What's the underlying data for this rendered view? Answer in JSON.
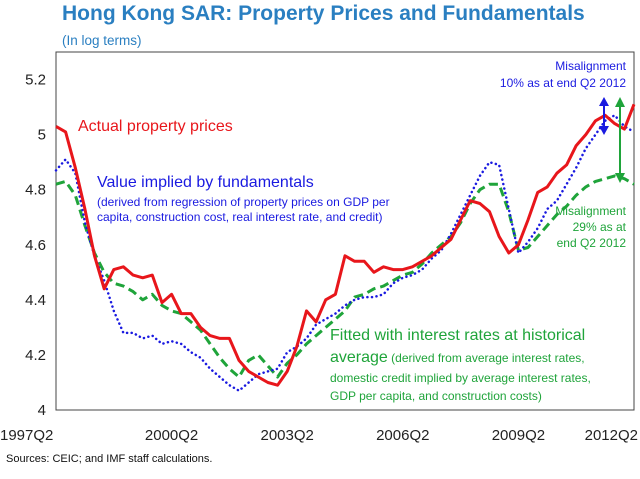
{
  "chart_data": {
    "type": "line",
    "title": "Hong Kong SAR: Property Prices and Fundamentals",
    "subtitle": "(In log terms)",
    "ylim": [
      4.0,
      5.3
    ],
    "yticks": [
      "4",
      "4.2",
      "4.4",
      "4.6",
      "4.8",
      "5",
      "5.2"
    ],
    "ytick_values": [
      4.0,
      4.2,
      4.4,
      4.6,
      4.8,
      5.0,
      5.2
    ],
    "xticks": [
      "1997Q2",
      "2000Q2",
      "2003Q2",
      "2006Q2",
      "2009Q2",
      "2012Q2"
    ],
    "xtick_index": [
      0,
      12,
      24,
      36,
      48,
      60
    ],
    "n_points": 61,
    "series": [
      {
        "name": "Actual property prices",
        "color": "#e8161b",
        "style": "solid",
        "values": [
          5.03,
          5.01,
          4.88,
          4.73,
          4.56,
          4.44,
          4.51,
          4.52,
          4.49,
          4.48,
          4.49,
          4.39,
          4.42,
          4.35,
          4.35,
          4.3,
          4.27,
          4.26,
          4.26,
          4.18,
          4.14,
          4.12,
          4.1,
          4.09,
          4.14,
          4.23,
          4.36,
          4.32,
          4.4,
          4.42,
          4.56,
          4.54,
          4.54,
          4.5,
          4.52,
          4.51,
          4.51,
          4.52,
          4.54,
          4.56,
          4.59,
          4.62,
          4.69,
          4.76,
          4.75,
          4.72,
          4.63,
          4.57,
          4.6,
          4.69,
          4.79,
          4.81,
          4.86,
          4.89,
          4.96,
          5.0,
          5.05,
          5.07,
          5.04,
          5.02,
          5.11
        ]
      },
      {
        "name": "Value implied by fundamentals",
        "color": "#1a1ae0",
        "style": "dotted",
        "values": [
          4.87,
          4.91,
          4.86,
          4.68,
          4.56,
          4.47,
          4.36,
          4.28,
          4.28,
          4.26,
          4.27,
          4.24,
          4.25,
          4.24,
          4.21,
          4.19,
          4.15,
          4.12,
          4.09,
          4.07,
          4.1,
          4.13,
          4.14,
          4.15,
          4.21,
          4.23,
          4.26,
          4.31,
          4.33,
          4.35,
          4.38,
          4.4,
          4.41,
          4.41,
          4.42,
          4.46,
          4.48,
          4.49,
          4.51,
          4.55,
          4.58,
          4.64,
          4.71,
          4.78,
          4.85,
          4.9,
          4.89,
          4.73,
          4.57,
          4.61,
          4.66,
          4.73,
          4.76,
          4.82,
          4.88,
          4.95,
          5.0,
          5.05,
          5.07,
          5.03,
          5.01
        ]
      },
      {
        "name": "Fitted with interest rates at historical average",
        "color": "#1fa43a",
        "style": "dashed",
        "values": [
          4.82,
          4.83,
          4.78,
          4.67,
          4.57,
          4.5,
          4.46,
          4.45,
          4.43,
          4.4,
          4.42,
          4.38,
          4.36,
          4.35,
          4.32,
          4.29,
          4.24,
          4.19,
          4.15,
          4.12,
          4.18,
          4.2,
          4.16,
          4.12,
          4.17,
          4.2,
          4.24,
          4.27,
          4.3,
          4.33,
          4.36,
          4.41,
          4.42,
          4.44,
          4.45,
          4.47,
          4.49,
          4.5,
          4.53,
          4.57,
          4.6,
          4.63,
          4.68,
          4.75,
          4.8,
          4.82,
          4.82,
          4.72,
          4.58,
          4.59,
          4.63,
          4.67,
          4.71,
          4.74,
          4.78,
          4.81,
          4.83,
          4.84,
          4.85,
          4.84,
          4.82
        ]
      }
    ],
    "annotations": {
      "red_label": "Actual property prices",
      "blue_label": "Value implied by fundamentals",
      "blue_note_1": "(derived from regression of property prices on GDP per",
      "blue_note_2": "capita, construction cost, real interest rate, and credit)",
      "green_label_1": "Fitted with interest rates at historical",
      "green_label_2_main": "average",
      "green_label_2_note": " (derived from average interest rates,",
      "green_note_3": "domestic credit implied by average interest rates,",
      "green_note_4": "GDP per capita, and construction costs)",
      "mis_blue_1": "Misalignment",
      "mis_blue_2": "10% as at end Q2 2012",
      "mis_green_1": "Misalignment",
      "mis_green_2": "29% as at",
      "mis_green_3": "end Q2 2012"
    },
    "source": "Sources: CEIC; and IMF staff calculations."
  },
  "colors": {
    "title": "#2a7fc1",
    "red": "#e8161b",
    "blue": "#1a1ae0",
    "green": "#1fa43a"
  }
}
